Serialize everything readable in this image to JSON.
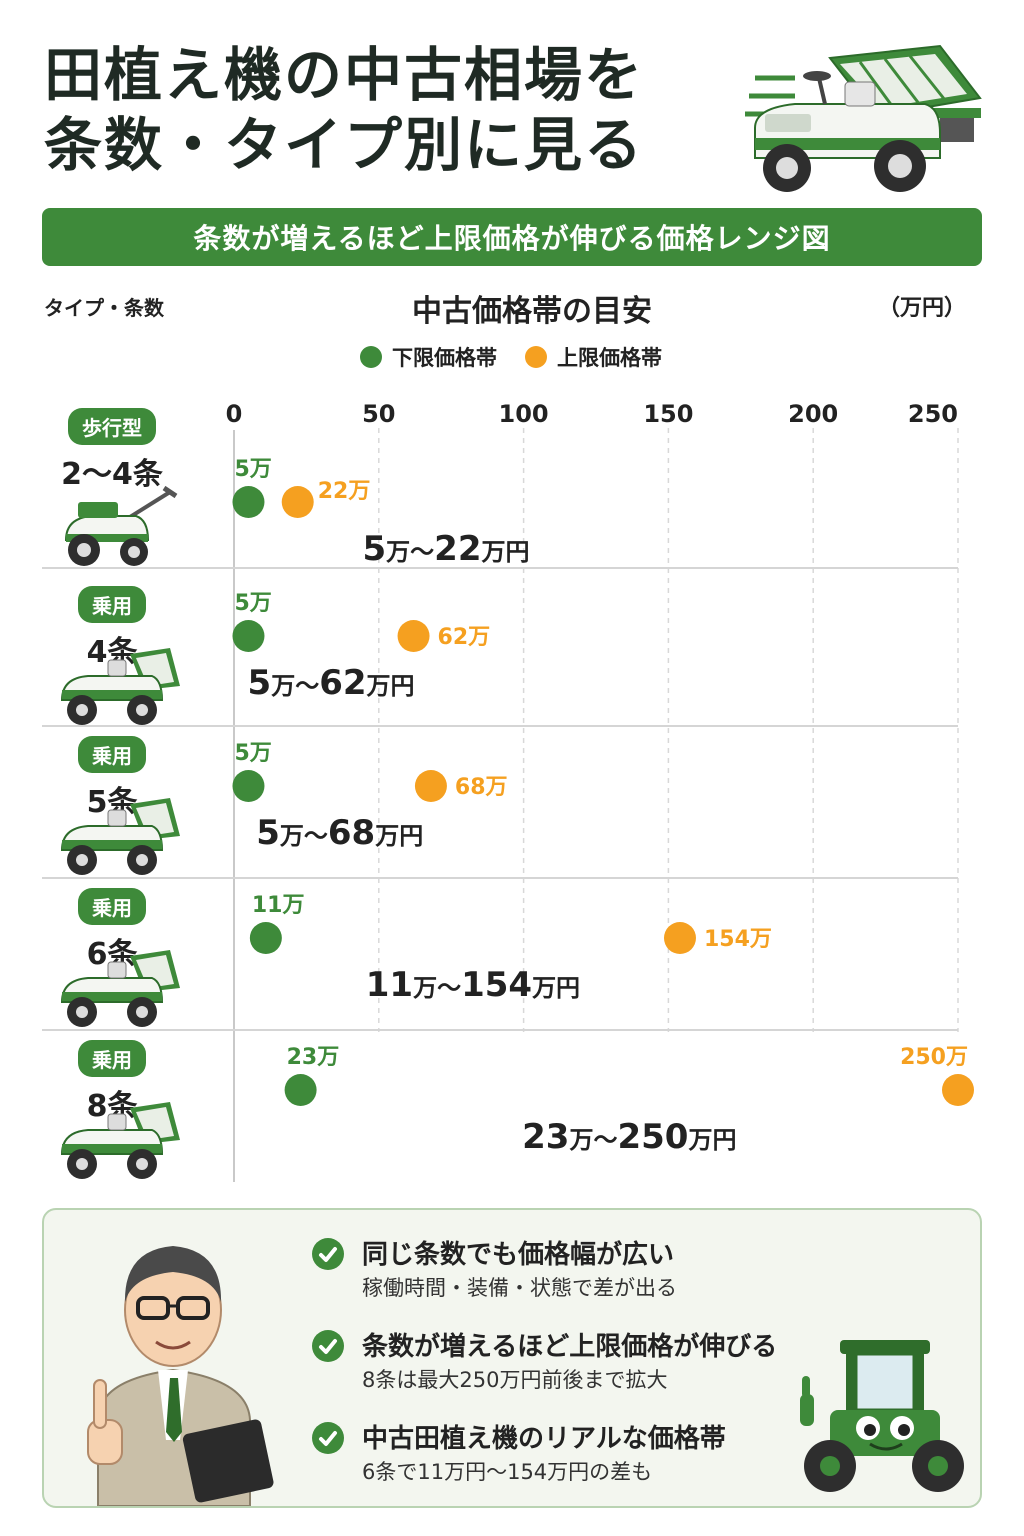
{
  "page": {
    "title_lines": [
      "田植え機の中古相場を",
      "条数・タイプ別に見る"
    ],
    "subtitle": "条数が増えるほど上限価格が伸びる価格レンジ図",
    "row_axis_label": "タイプ・条数",
    "unit": "（万円）"
  },
  "chart_data": {
    "type": "range",
    "title": "中古価格帯の目安",
    "xlim": [
      0,
      250
    ],
    "xticks": [
      "0",
      "50",
      "100",
      "150",
      "200",
      "250"
    ],
    "grid": true,
    "legend": {
      "placement": "top-center",
      "entries": [
        {
          "name": "下限価格帯",
          "color": "#3e8a3a"
        },
        {
          "name": "上限価格帯",
          "color": "#f5a020"
        }
      ]
    },
    "rows": [
      {
        "type": "歩行型",
        "rows": "2〜4条",
        "low": 5,
        "high": 22,
        "low_label": "5万",
        "high_label": "22万",
        "range_text": [
          "5",
          "万",
          "〜",
          "22",
          "万円"
        ]
      },
      {
        "type": "乗用",
        "rows": "4条",
        "low": 5,
        "high": 62,
        "low_label": "5万",
        "high_label": "62万",
        "range_text": [
          "5",
          "万",
          "〜",
          "62",
          "万円"
        ]
      },
      {
        "type": "乗用",
        "rows": "5条",
        "low": 5,
        "high": 68,
        "low_label": "5万",
        "high_label": "68万",
        "range_text": [
          "5",
          "万",
          "〜",
          "68",
          "万円"
        ]
      },
      {
        "type": "乗用",
        "rows": "6条",
        "low": 11,
        "high": 154,
        "low_label": "11万",
        "high_label": "154万",
        "range_text": [
          "11",
          "万",
          "〜",
          "154",
          "万円"
        ]
      },
      {
        "type": "乗用",
        "rows": "8条",
        "low": 23,
        "high": 250,
        "low_label": "23万",
        "high_label": "250万",
        "range_text": [
          "23",
          "万",
          "〜",
          "250",
          "万円"
        ]
      }
    ]
  },
  "info": {
    "points": [
      {
        "head": "同じ条数でも価格幅が広い",
        "body": "稼働時間・装備・状態で差が出る"
      },
      {
        "head": "条数が増えるほど上限価格が伸びる",
        "body": "8条は最大250万円前後まで拡大"
      },
      {
        "head": "中古田植え機のリアルな価格帯",
        "body": "6条で11万円〜154万円の差も"
      }
    ]
  },
  "icons": {
    "hero": "rice-transplanter-icon",
    "row_machine": "rice-transplanter-icon",
    "person": "advisor-person-icon",
    "mascot": "tractor-mascot-icon",
    "check": "check-icon"
  },
  "colors": {
    "green": "#3e8a3a",
    "orange": "#f5a020",
    "text": "#222222",
    "info_bg": "#f3f6ef"
  }
}
